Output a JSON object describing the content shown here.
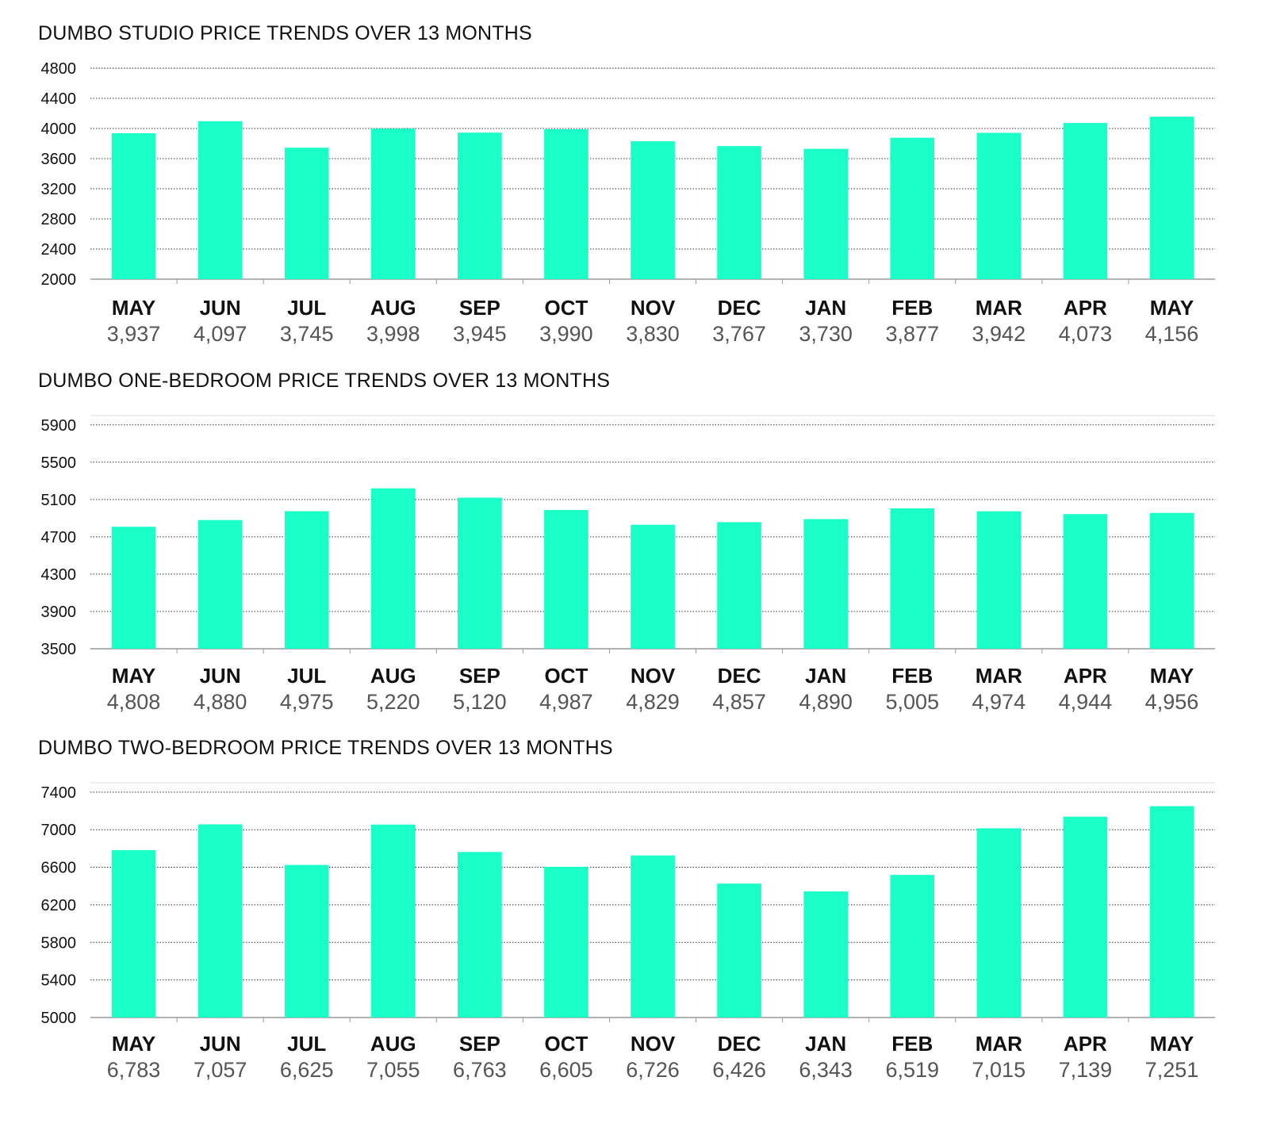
{
  "colors": {
    "bar": "#1affc8",
    "grid": "#333333",
    "axis": "#999999"
  },
  "chart_data": [
    {
      "type": "bar",
      "title": "DUMBO STUDIO PRICE TRENDS OVER 13 MONTHS",
      "categories": [
        "MAY",
        "JUN",
        "JUL",
        "AUG",
        "SEP",
        "OCT",
        "NOV",
        "DEC",
        "JAN",
        "FEB",
        "MAR",
        "APR",
        "MAY"
      ],
      "values": [
        3937,
        4097,
        3745,
        3998,
        3945,
        3990,
        3830,
        3767,
        3730,
        3877,
        3942,
        4073,
        4156
      ],
      "value_labels": [
        "3,937",
        "4,097",
        "3,745",
        "3,998",
        "3,945",
        "3,990",
        "3,830",
        "3,767",
        "3,730",
        "3,877",
        "3,942",
        "4,073",
        "4,156"
      ],
      "yticks": [
        2000,
        2400,
        2800,
        3200,
        3600,
        4000,
        4400,
        4800
      ],
      "ylim": [
        2000,
        4800
      ],
      "xlabel": "",
      "ylabel": "",
      "grid": true
    },
    {
      "type": "bar",
      "title": "DUMBO ONE-BEDROOM PRICE TRENDS OVER 13 MONTHS",
      "categories": [
        "MAY",
        "JUN",
        "JUL",
        "AUG",
        "SEP",
        "OCT",
        "NOV",
        "DEC",
        "JAN",
        "FEB",
        "MAR",
        "APR",
        "MAY"
      ],
      "values": [
        4808,
        4880,
        4975,
        5220,
        5120,
        4987,
        4829,
        4857,
        4890,
        5005,
        4974,
        4944,
        4956
      ],
      "value_labels": [
        "4,808",
        "4,880",
        "4,975",
        "5,220",
        "5,120",
        "4,987",
        "4,829",
        "4,857",
        "4,890",
        "5,005",
        "4,974",
        "4,944",
        "4,956"
      ],
      "yticks": [
        3500,
        3900,
        4300,
        4700,
        5100,
        5500,
        5900
      ],
      "ylim": [
        3500,
        6000
      ],
      "xlabel": "",
      "ylabel": "",
      "grid": true
    },
    {
      "type": "bar",
      "title": "DUMBO TWO-BEDROOM PRICE TRENDS OVER 13 MONTHS",
      "categories": [
        "MAY",
        "JUN",
        "JUL",
        "AUG",
        "SEP",
        "OCT",
        "NOV",
        "DEC",
        "JAN",
        "FEB",
        "MAR",
        "APR",
        "MAY"
      ],
      "values": [
        6783,
        7057,
        6625,
        7055,
        6763,
        6605,
        6726,
        6426,
        6343,
        6519,
        7015,
        7139,
        7251
      ],
      "value_labels": [
        "6,783",
        "7,057",
        "6,625",
        "7,055",
        "6,763",
        "6,605",
        "6,726",
        "6,426",
        "6,343",
        "6,519",
        "7,015",
        "7,139",
        "7,251"
      ],
      "yticks": [
        5000,
        5400,
        5800,
        6200,
        6600,
        7000,
        7400
      ],
      "ylim": [
        5000,
        7500
      ],
      "xlabel": "",
      "ylabel": "",
      "grid": true
    }
  ]
}
